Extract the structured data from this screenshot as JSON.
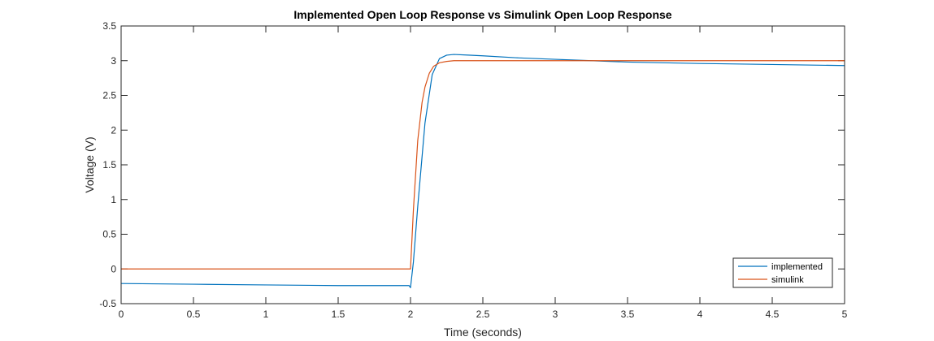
{
  "chart_data": {
    "type": "line",
    "title": "Implemented Open Loop Response vs Simulink Open Loop Response",
    "xlabel": "Time (seconds)",
    "ylabel": "Voltage (V)",
    "xlim": [
      0,
      5
    ],
    "ylim": [
      -0.5,
      3.5
    ],
    "xticks": [
      0,
      0.5,
      1,
      1.5,
      2,
      2.5,
      3,
      3.5,
      4,
      4.5,
      5
    ],
    "xtick_labels": [
      "0",
      "0.5",
      "1",
      "1.5",
      "2",
      "2.5",
      "3",
      "3.5",
      "4",
      "4.5",
      "5"
    ],
    "yticks": [
      -0.5,
      0,
      0.5,
      1,
      1.5,
      2,
      2.5,
      3,
      3.5
    ],
    "ytick_labels": [
      "-0.5",
      "0",
      "0.5",
      "1",
      "1.5",
      "2",
      "2.5",
      "3",
      "3.5"
    ],
    "grid": false,
    "legend_position": "bottom-right",
    "series": [
      {
        "name": "implemented",
        "color": "#0072BD",
        "x": [
          0,
          0.5,
          1.0,
          1.5,
          1.99,
          2.0,
          2.02,
          2.05,
          2.1,
          2.15,
          2.2,
          2.25,
          2.3,
          2.4,
          2.5,
          2.75,
          3.0,
          3.25,
          3.5,
          4.0,
          4.5,
          5.0
        ],
        "y": [
          -0.21,
          -0.22,
          -0.23,
          -0.24,
          -0.24,
          -0.27,
          0.1,
          0.9,
          2.1,
          2.8,
          3.03,
          3.08,
          3.09,
          3.08,
          3.07,
          3.04,
          3.02,
          3.0,
          2.98,
          2.96,
          2.945,
          2.93
        ]
      },
      {
        "name": "simulink",
        "color": "#D95319",
        "x": [
          0,
          1.0,
          2.0,
          2.02,
          2.05,
          2.08,
          2.1,
          2.13,
          2.16,
          2.2,
          2.25,
          2.3,
          2.4,
          2.6,
          3.0,
          4.0,
          5.0
        ],
        "y": [
          0,
          0,
          0,
          0.85,
          1.85,
          2.4,
          2.62,
          2.82,
          2.92,
          2.97,
          2.99,
          3.0,
          3.0,
          3.0,
          3.0,
          3.0,
          3.0
        ]
      }
    ]
  }
}
